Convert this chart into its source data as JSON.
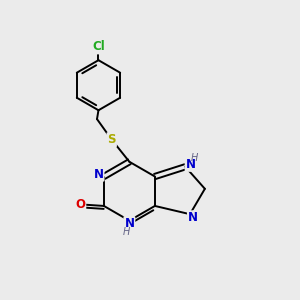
{
  "background_color": "#ebebeb",
  "bond_color": "#000000",
  "N_color": "#0000cc",
  "O_color": "#dd0000",
  "S_color": "#aaaa00",
  "Cl_color": "#22aa22",
  "H_color": "#666688",
  "bond_width": 1.4,
  "font_size_atom": 8.5,
  "font_size_H": 7.0,
  "xlim": [
    0,
    10
  ],
  "ylim": [
    0,
    10
  ]
}
